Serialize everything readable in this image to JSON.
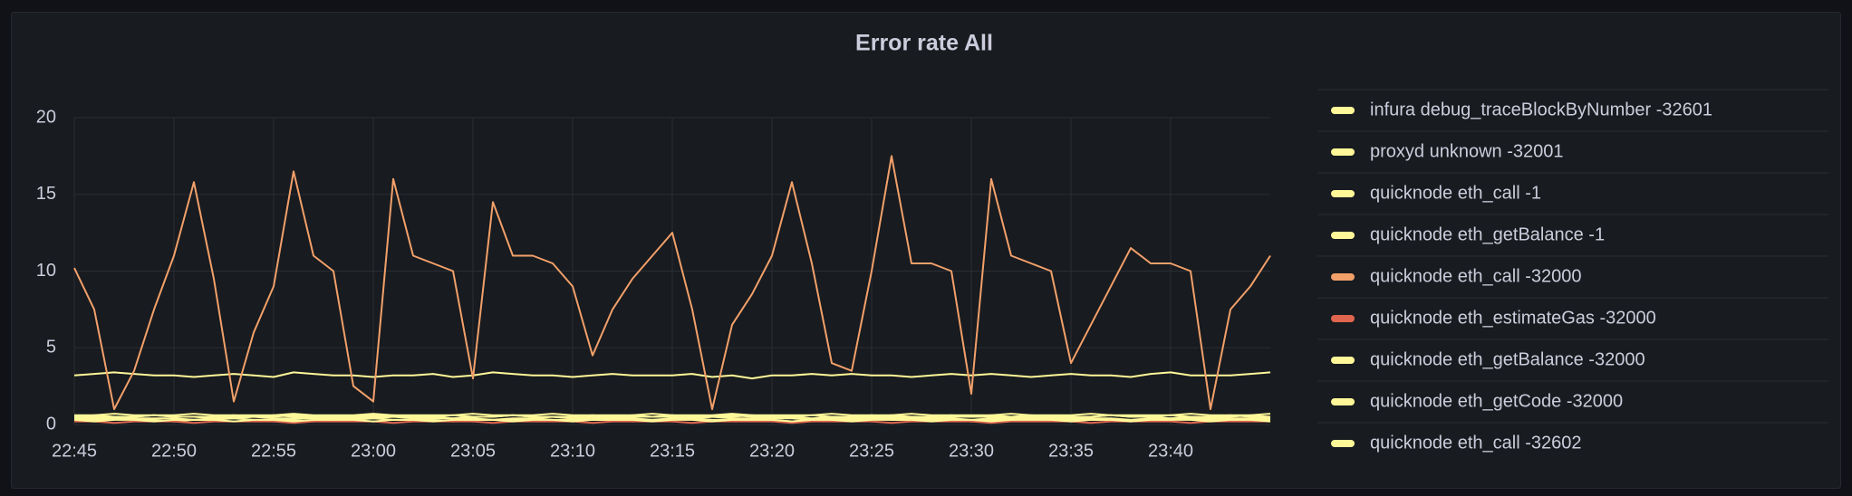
{
  "chart_data": {
    "type": "line",
    "title": "Error rate All",
    "grid": true,
    "legend": "right",
    "x": [
      "22:45",
      "22:46",
      "22:47",
      "22:48",
      "22:49",
      "22:50",
      "22:51",
      "22:52",
      "22:53",
      "22:54",
      "22:55",
      "22:56",
      "22:57",
      "22:58",
      "22:59",
      "23:00",
      "23:01",
      "23:02",
      "23:03",
      "23:04",
      "23:05",
      "23:06",
      "23:07",
      "23:08",
      "23:09",
      "23:10",
      "23:11",
      "23:12",
      "23:13",
      "23:14",
      "23:15",
      "23:16",
      "23:17",
      "23:18",
      "23:19",
      "23:20",
      "23:21",
      "23:22",
      "23:23",
      "23:24",
      "23:25",
      "23:26",
      "23:27",
      "23:28",
      "23:29",
      "23:30",
      "23:31",
      "23:32",
      "23:33",
      "23:34",
      "23:35",
      "23:36",
      "23:37",
      "23:38",
      "23:39",
      "23:40",
      "23:41",
      "23:42",
      "23:43",
      "23:44",
      "23:45"
    ],
    "xticks": [
      "22:45",
      "22:50",
      "22:55",
      "23:00",
      "23:05",
      "23:10",
      "23:15",
      "23:20",
      "23:25",
      "23:30",
      "23:35",
      "23:40"
    ],
    "ylim": [
      0,
      20
    ],
    "yticks": [
      0,
      5,
      10,
      15,
      20
    ],
    "series": [
      {
        "name": "infura debug_traceBlockByNumber -32601",
        "color": "#fff899",
        "values": [
          0.3,
          0.3,
          0.4,
          0.3,
          0.3,
          0.2,
          0.3,
          0.3,
          0.4,
          0.3,
          0.3,
          0.3,
          0.2,
          0.3,
          0.3,
          0.4,
          0.3,
          0.3,
          0.3,
          0.2,
          0.3,
          0.3,
          0.3,
          0.4,
          0.3,
          0.3,
          0.3,
          0.3,
          0.2,
          0.3,
          0.3,
          0.4,
          0.3,
          0.3,
          0.3,
          0.3,
          0.2,
          0.3,
          0.3,
          0.3,
          0.4,
          0.3,
          0.3,
          0.3,
          0.3,
          0.2,
          0.3,
          0.3,
          0.4,
          0.3,
          0.3,
          0.3,
          0.3,
          0.2,
          0.3,
          0.3,
          0.4,
          0.3,
          0.3,
          0.3,
          0.3
        ]
      },
      {
        "name": "proxyd unknown -32001",
        "color": "#fff899",
        "values": [
          0.5,
          0.6,
          0.5,
          0.5,
          0.6,
          0.5,
          0.5,
          0.5,
          0.6,
          0.5,
          0.5,
          0.6,
          0.5,
          0.5,
          0.5,
          0.6,
          0.5,
          0.5,
          0.5,
          0.6,
          0.5,
          0.5,
          0.6,
          0.5,
          0.5,
          0.5,
          0.6,
          0.5,
          0.5,
          0.5,
          0.6,
          0.5,
          0.5,
          0.6,
          0.5,
          0.5,
          0.5,
          0.6,
          0.5,
          0.5,
          0.5,
          0.6,
          0.5,
          0.5,
          0.6,
          0.5,
          0.5,
          0.5,
          0.6,
          0.5,
          0.5,
          0.5,
          0.6,
          0.5,
          0.5,
          0.6,
          0.5,
          0.5,
          0.5,
          0.6,
          0.5
        ]
      },
      {
        "name": "quicknode eth_call -1",
        "color": "#fff899",
        "values": [
          3.2,
          3.3,
          3.4,
          3.3,
          3.2,
          3.2,
          3.1,
          3.2,
          3.3,
          3.2,
          3.1,
          3.4,
          3.3,
          3.2,
          3.2,
          3.1,
          3.2,
          3.2,
          3.3,
          3.1,
          3.2,
          3.4,
          3.3,
          3.2,
          3.2,
          3.1,
          3.2,
          3.3,
          3.2,
          3.2,
          3.2,
          3.3,
          3.1,
          3.2,
          3.0,
          3.2,
          3.2,
          3.3,
          3.2,
          3.3,
          3.2,
          3.2,
          3.1,
          3.2,
          3.3,
          3.2,
          3.3,
          3.2,
          3.1,
          3.2,
          3.3,
          3.2,
          3.2,
          3.1,
          3.3,
          3.4,
          3.2,
          3.2,
          3.2,
          3.3,
          3.4
        ]
      },
      {
        "name": "quicknode eth_getBalance -1",
        "color": "#fff899",
        "values": [
          0.4,
          0.4,
          0.5,
          0.4,
          0.4,
          0.4,
          0.3,
          0.4,
          0.4,
          0.5,
          0.4,
          0.4,
          0.4,
          0.3,
          0.4,
          0.4,
          0.5,
          0.4,
          0.4,
          0.4,
          0.4,
          0.3,
          0.4,
          0.4,
          0.5,
          0.4,
          0.4,
          0.4,
          0.4,
          0.3,
          0.4,
          0.4,
          0.5,
          0.4,
          0.4,
          0.4,
          0.4,
          0.3,
          0.4,
          0.4,
          0.5,
          0.4,
          0.4,
          0.4,
          0.4,
          0.3,
          0.4,
          0.4,
          0.5,
          0.4,
          0.4,
          0.4,
          0.4,
          0.3,
          0.4,
          0.4,
          0.5,
          0.4,
          0.4,
          0.4,
          0.4
        ]
      },
      {
        "name": "quicknode eth_call -32000",
        "color": "#f2a06a",
        "values": [
          10.2,
          7.5,
          1.0,
          3.5,
          7.5,
          11,
          15.8,
          9.5,
          1.5,
          6,
          9,
          16.5,
          11,
          10,
          2.5,
          1.5,
          16,
          11,
          10.5,
          10,
          3,
          14.5,
          11,
          11,
          10.5,
          9,
          4.5,
          7.5,
          9.5,
          11,
          12.5,
          7.5,
          1,
          6.5,
          8.5,
          11,
          15.8,
          10.5,
          4,
          3.5,
          10,
          17.5,
          10.5,
          10.5,
          10,
          2,
          16,
          11,
          10.5,
          10,
          4,
          6.5,
          9,
          11.5,
          10.5,
          10.5,
          10,
          1,
          7.5,
          9,
          11
        ]
      },
      {
        "name": "quicknode eth_estimateGas -32000",
        "color": "#e0654f",
        "values": [
          0.2,
          0.2,
          0.1,
          0.2,
          0.2,
          0.2,
          0.1,
          0.2,
          0.2,
          0.2,
          0.2,
          0.1,
          0.2,
          0.2,
          0.2,
          0.2,
          0.1,
          0.2,
          0.2,
          0.2,
          0.2,
          0.1,
          0.2,
          0.2,
          0.2,
          0.2,
          0.1,
          0.2,
          0.2,
          0.2,
          0.2,
          0.1,
          0.2,
          0.2,
          0.2,
          0.2,
          0.1,
          0.2,
          0.2,
          0.2,
          0.2,
          0.1,
          0.2,
          0.2,
          0.2,
          0.2,
          0.1,
          0.2,
          0.2,
          0.2,
          0.2,
          0.1,
          0.2,
          0.2,
          0.2,
          0.2,
          0.1,
          0.2,
          0.2,
          0.2,
          0.2
        ]
      },
      {
        "name": "quicknode eth_getBalance -32000",
        "color": "#fff899",
        "values": [
          0.5,
          0.5,
          0.4,
          0.5,
          0.6,
          0.5,
          0.5,
          0.4,
          0.5,
          0.5,
          0.6,
          0.5,
          0.5,
          0.4,
          0.5,
          0.5,
          0.6,
          0.5,
          0.5,
          0.4,
          0.5,
          0.5,
          0.6,
          0.5,
          0.5,
          0.4,
          0.5,
          0.5,
          0.6,
          0.5,
          0.5,
          0.4,
          0.5,
          0.5,
          0.6,
          0.5,
          0.5,
          0.4,
          0.5,
          0.5,
          0.6,
          0.5,
          0.5,
          0.4,
          0.5,
          0.5,
          0.6,
          0.5,
          0.5,
          0.4,
          0.5,
          0.5,
          0.6,
          0.5,
          0.5,
          0.4,
          0.5,
          0.5,
          0.6,
          0.5,
          0.5
        ]
      },
      {
        "name": "quicknode eth_getCode -32000",
        "color": "#fff899",
        "values": [
          0.3,
          0.2,
          0.3,
          0.3,
          0.2,
          0.3,
          0.3,
          0.3,
          0.2,
          0.3,
          0.3,
          0.2,
          0.3,
          0.3,
          0.3,
          0.2,
          0.3,
          0.3,
          0.2,
          0.3,
          0.3,
          0.3,
          0.2,
          0.3,
          0.3,
          0.2,
          0.3,
          0.3,
          0.3,
          0.2,
          0.3,
          0.3,
          0.2,
          0.3,
          0.3,
          0.3,
          0.2,
          0.3,
          0.3,
          0.2,
          0.3,
          0.3,
          0.3,
          0.2,
          0.3,
          0.3,
          0.2,
          0.3,
          0.3,
          0.3,
          0.2,
          0.3,
          0.3,
          0.2,
          0.3,
          0.3,
          0.3,
          0.2,
          0.3,
          0.3,
          0.2
        ]
      },
      {
        "name": "quicknode eth_call -32602",
        "color": "#fff899",
        "values": [
          0.6,
          0.6,
          0.7,
          0.6,
          0.6,
          0.6,
          0.7,
          0.6,
          0.6,
          0.6,
          0.6,
          0.7,
          0.6,
          0.6,
          0.6,
          0.7,
          0.6,
          0.6,
          0.6,
          0.6,
          0.7,
          0.6,
          0.6,
          0.6,
          0.7,
          0.6,
          0.6,
          0.6,
          0.6,
          0.7,
          0.6,
          0.6,
          0.6,
          0.7,
          0.6,
          0.6,
          0.6,
          0.6,
          0.7,
          0.6,
          0.6,
          0.6,
          0.7,
          0.6,
          0.6,
          0.6,
          0.6,
          0.7,
          0.6,
          0.6,
          0.6,
          0.7,
          0.6,
          0.6,
          0.6,
          0.6,
          0.7,
          0.6,
          0.6,
          0.6,
          0.7
        ]
      }
    ]
  }
}
